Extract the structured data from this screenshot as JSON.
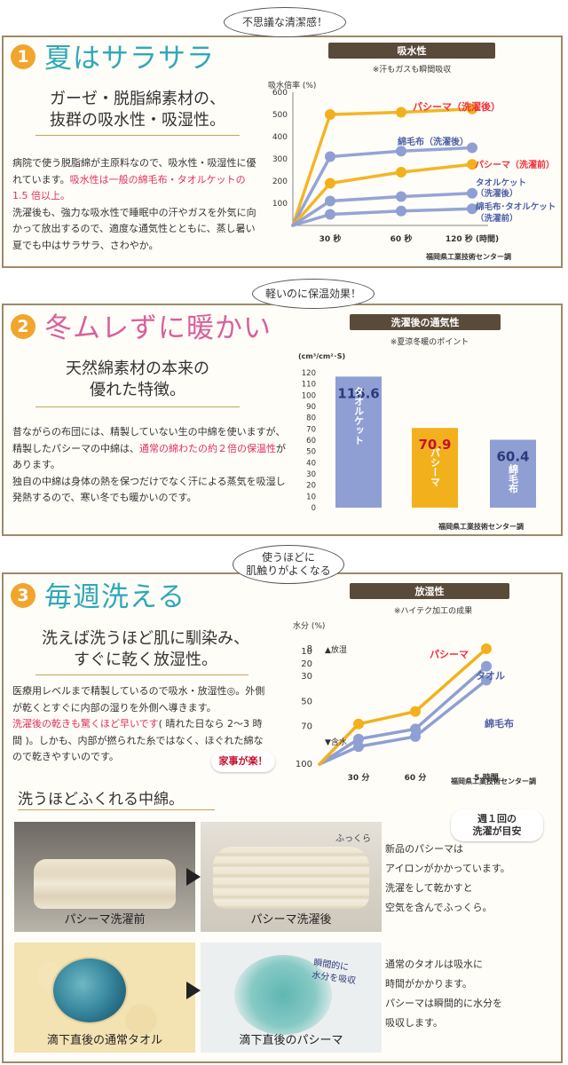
{
  "section1": {
    "bubble": "不思議な清潔感！",
    "number": "1",
    "title": "夏はサラサラ",
    "subhead_lines": [
      "ガーゼ・脱脂綿素材の、",
      "抜群の吸水性・吸湿性。"
    ],
    "body": {
      "p1_a": "病院で使う脱脂綿が主原料なので、吸水性・吸湿性に優れています。",
      "p1_red": "吸水性は一般の綿毛布・タオルケットの 1.5 倍以上。",
      "p2": "洗濯後も、強力な吸水性で睡眠中の汗やガスを外気に向かって放出するので、適度な通気性とともに、蒸し暑い夏でも中はサラサラ、さわやか。"
    }
  },
  "chart1": {
    "type": "line",
    "header": "吸水性",
    "subtitle": "※汗もガスも瞬間吸収",
    "ylabel": "吸水倍率 (%)",
    "y_ticks": [
      "600",
      "500",
      "400",
      "300",
      "200",
      "100"
    ],
    "x_ticks": [
      "30 秒",
      "60 秒",
      "120 秒 (時間)"
    ],
    "source": "福岡県工業技術センター調",
    "ylim": [
      0,
      600
    ],
    "x": [
      "0",
      "30 秒",
      "60 秒",
      "120 秒"
    ],
    "series": [
      {
        "name": "パシーマ（洗濯後）",
        "values": [
          0,
          500,
          510,
          525
        ],
        "color": "#f2b11c"
      },
      {
        "name": "綿毛布（洗濯後）",
        "values": [
          0,
          310,
          335,
          350
        ],
        "color": "#8f9fd3"
      },
      {
        "name": "パシーマ（洗濯前）",
        "values": [
          0,
          190,
          240,
          275
        ],
        "color": "#f2b11c"
      },
      {
        "name": "タオルケット（洗濯後）",
        "values": [
          0,
          110,
          130,
          145
        ],
        "color": "#8f9fd3"
      },
      {
        "name": "綿毛布・タオルケット（洗濯前）",
        "values": [
          0,
          50,
          65,
          75
        ],
        "color": "#8f9fd3"
      }
    ],
    "labels": {
      "s1": "パシーマ（洗濯後）",
      "s2": "綿毛布（洗濯後）",
      "s3": "パシーマ（洗濯前）",
      "s4a": "タオルケット",
      "s4b": "（洗濯後）",
      "s5a": "綿毛布･タオルケット",
      "s5b": "（洗濯前）"
    }
  },
  "section2": {
    "bubble": "軽いのに保温効果！",
    "number": "2",
    "title": "冬ムレずに暖かい",
    "subhead_lines": [
      "天然綿素材の本来の",
      "優れた特徴。"
    ],
    "body": {
      "p1_a": "昔ながらの布団には、精製していない生の中綿を使いますが、精製したパシーマの中綿は、",
      "p1_red": "通常の綿わたの約２倍の保温性",
      "p1_b": "があります。",
      "p2": "独自の中綿は身体の熱を保つだけでなく汗による蒸気を吸湿し発熱するので、寒い冬でも暖かいのです。"
    }
  },
  "chart2": {
    "type": "bar",
    "header": "洗濯後の通気性",
    "subtitle": "※夏涼冬暖のポイント",
    "ylabel": "(cm³/cm²･S)",
    "y_ticks": [
      "120",
      "110",
      "100",
      "90",
      "80",
      "70",
      "60",
      "50",
      "40",
      "30",
      "20",
      "10",
      "0"
    ],
    "ylim": [
      0,
      120
    ],
    "categories": [
      "タオルケット",
      "パシーマ",
      "綿毛布"
    ],
    "values": [
      116.6,
      70.9,
      60.4
    ],
    "value_labels": [
      "116.6",
      "70.9",
      "60.4"
    ],
    "colors": [
      "#8f9fd3",
      "#f2b11c",
      "#8f9fd3"
    ],
    "source": "福岡県工業技術センター調"
  },
  "section3": {
    "bubble_lines": [
      "使うほどに",
      "肌触りがよくなる"
    ],
    "number": "3",
    "title": "毎週洗える",
    "subhead_lines": [
      "洗えば洗うほど肌に馴染み、",
      "すぐに乾く放湿性。"
    ],
    "body": {
      "p1": "医療用レベルまで精製しているので吸水・放湿性◎。外側が乾くとすぐに内部の湿りを外側へ導きます。",
      "p2_red": "洗濯後の乾きも驚くほど早いです",
      "p2_b": "( 晴れた日なら 2〜3 時間 )。しかも、内部が撚られた糸ではなく、ほぐれた綿なので乾きやすいのです。"
    },
    "pill_easy": "家事が楽！",
    "pill_weekly_lines": [
      "週１回の",
      "洗濯が目安"
    ]
  },
  "chart3": {
    "type": "line",
    "header": "放湿性",
    "subtitle": "※ハイテク加工の成果",
    "ylabel": "水分 (%)",
    "y_ticks": [
      "8",
      "10",
      "20",
      "30",
      "50",
      "70",
      "100"
    ],
    "tick_release": "▲放湿",
    "tick_contain": "▼含水",
    "x_ticks": [
      "30 分",
      "60 分",
      "5 時間"
    ],
    "source": "福岡県工業技術センター調",
    "ylim": [
      100,
      8
    ],
    "x": [
      "0",
      "30 分",
      "60 分",
      "5 時間"
    ],
    "series": [
      {
        "name": "パシーマ",
        "values": [
          100,
          68,
          58,
          8
        ],
        "color": "#f2b11c"
      },
      {
        "name": "タオル",
        "values": [
          100,
          80,
          72,
          22
        ],
        "color": "#8f9fd3"
      },
      {
        "name": "綿毛布",
        "values": [
          100,
          86,
          78,
          33
        ],
        "color": "#8f9fd3"
      }
    ]
  },
  "fluff": {
    "heading": "洗うほどふくれる中綿。",
    "photo1_caption": "パシーマ洗濯前",
    "photo2_caption": "パシーマ洗濯後",
    "photo2_tag": "ふっくら",
    "note1_lines": [
      "新品のパシーマは",
      "アイロンがかかっています。",
      "洗濯をして乾かすと",
      "空気を含んでふっくら。"
    ],
    "photo3_caption": "滴下直後の通常タオル",
    "photo4_caption": "滴下直後のパシーマ",
    "photo4_tag_lines": [
      "瞬間的に",
      "水分を吸収"
    ],
    "note2_lines": [
      "通常のタオルは吸水に",
      "時間がかかります。",
      "パシーマは瞬間的に水分を",
      "吸収します。"
    ]
  }
}
